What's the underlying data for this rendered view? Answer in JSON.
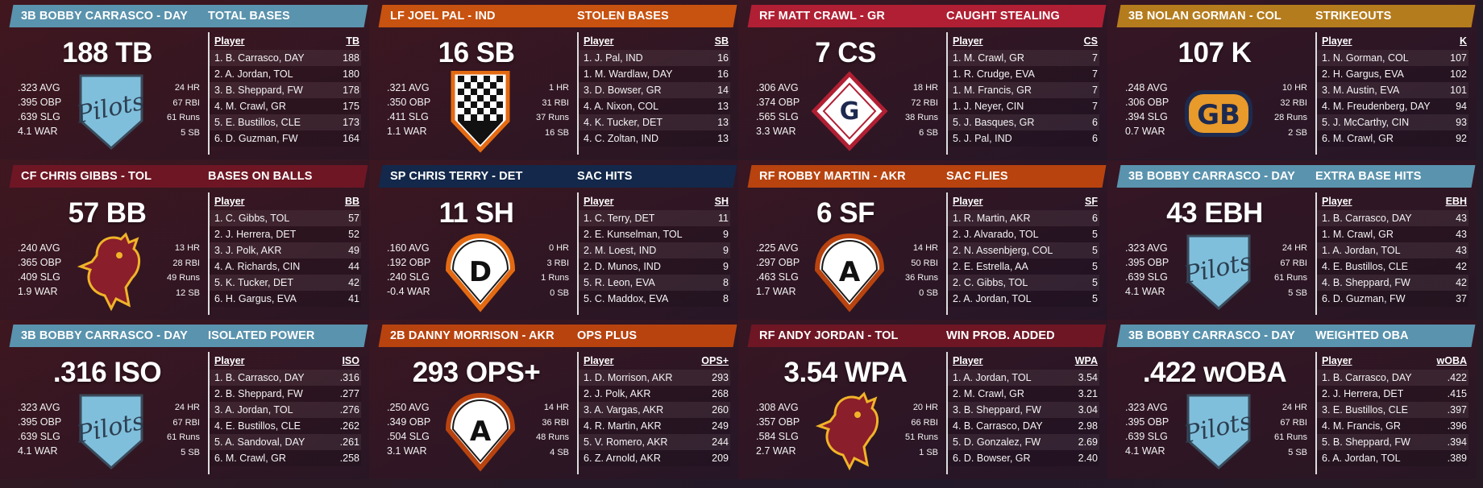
{
  "panels": [
    {
      "player": "3B BOBBY CARRASCO - DAY",
      "category": "TOTAL BASES",
      "big": "188 TB",
      "rates": [
        ".323 AVG",
        ".395 OBP",
        ".639 SLG",
        "4.1 WAR"
      ],
      "counts": [
        "24 HR",
        "67 RBI",
        "61 Runs",
        "5 SB"
      ],
      "logo": "pilots-logo",
      "col": "TB",
      "rows": [
        [
          "1. B. Carrasco, DAY",
          "188"
        ],
        [
          "2. A. Jordan, TOL",
          "180"
        ],
        [
          "3. B. Sheppard, FW",
          "178"
        ],
        [
          "4. M. Crawl, GR",
          "175"
        ],
        [
          "5. E. Bustillos, CLE",
          "173"
        ],
        [
          "6. D. Guzman, FW",
          "164"
        ]
      ],
      "color": "#5a93ad"
    },
    {
      "player": "LF JOEL PAL - IND",
      "category": "STOLEN BASES",
      "big": "16 SB",
      "rates": [
        ".321 AVG",
        ".350 OBP",
        ".411 SLG",
        "1.1 WAR"
      ],
      "counts": [
        "1 HR",
        "31 RBI",
        "37 Runs",
        "16 SB"
      ],
      "logo": "checkered-flag-logo",
      "col": "SB",
      "rows": [
        [
          "1. J. Pal, IND",
          "16"
        ],
        [
          "1. M. Wardlaw, DAY",
          "16"
        ],
        [
          "3. D. Bowser, GR",
          "14"
        ],
        [
          "4. A. Nixon, COL",
          "13"
        ],
        [
          "4. K. Tucker, DET",
          "13"
        ],
        [
          "4. C. Zoltan, IND",
          "13"
        ]
      ],
      "color": "#c8520f"
    },
    {
      "player": "RF MATT CRAWL - GR",
      "category": "CAUGHT STEALING",
      "big": "7 CS",
      "rates": [
        ".306 AVG",
        ".374 OBP",
        ".565 SLG",
        "3.3 WAR"
      ],
      "counts": [
        "18 HR",
        "72 RBI",
        "38 Runs",
        "6 SB"
      ],
      "logo": "g-diamond-logo",
      "col": "CS",
      "rows": [
        [
          "1. M. Crawl, GR",
          "7"
        ],
        [
          "1. R. Crudge, EVA",
          "7"
        ],
        [
          "1. M. Francis, GR",
          "7"
        ],
        [
          "1. J. Neyer, CIN",
          "7"
        ],
        [
          "5. J. Basques, GR",
          "6"
        ],
        [
          "5. J. Pal, IND",
          "6"
        ]
      ],
      "color": "#b01f33"
    },
    {
      "player": "3B NOLAN GORMAN - COL",
      "category": "STRIKEOUTS",
      "big": "107 K",
      "rates": [
        ".248 AVG",
        ".306 OBP",
        ".394 SLG",
        "0.7 WAR"
      ],
      "counts": [
        "10 HR",
        "32 RBI",
        "28 Runs",
        "2 SB"
      ],
      "logo": "gb-logo",
      "col": "K",
      "rows": [
        [
          "1. N. Gorman, COL",
          "107"
        ],
        [
          "2. H. Gargus, EVA",
          "102"
        ],
        [
          "3. M. Austin, EVA",
          "101"
        ],
        [
          "4. M. Freudenberg, DAY",
          "94"
        ],
        [
          "5. J. McCarthy, CIN",
          "93"
        ],
        [
          "6. M. Crawl, GR",
          "92"
        ]
      ],
      "color": "#b57c1d"
    },
    {
      "player": "CF CHRIS GIBBS - TOL",
      "category": "BASES ON BALLS",
      "big": "57 BB",
      "rates": [
        ".240 AVG",
        ".365 OBP",
        ".409 SLG",
        "1.9 WAR"
      ],
      "counts": [
        "13 HR",
        "28 RBI",
        "49 Runs",
        "12 SB"
      ],
      "logo": "rooster-logo",
      "col": "BB",
      "rows": [
        [
          "1. C. Gibbs, TOL",
          "57"
        ],
        [
          "2. J. Herrera, DET",
          "52"
        ],
        [
          "3. J. Polk, AKR",
          "49"
        ],
        [
          "4. A. Richards, CIN",
          "44"
        ],
        [
          "5. K. Tucker, DET",
          "42"
        ],
        [
          "6. H. Gargus, EVA",
          "41"
        ]
      ],
      "color": "#6e1624"
    },
    {
      "player": "SP CHRIS TERRY - DET",
      "category": "SAC HITS",
      "big": "11 SH",
      "rates": [
        ".160 AVG",
        ".192 OBP",
        ".240 SLG",
        "-0.4 WAR"
      ],
      "counts": [
        "0 HR",
        "3 RBI",
        "1 Runs",
        "0 SB"
      ],
      "logo": "d-plate-logo",
      "col": "SH",
      "rows": [
        [
          "1. C. Terry, DET",
          "11"
        ],
        [
          "2. E. Kunselman, TOL",
          "9"
        ],
        [
          "2. M. Loest, IND",
          "9"
        ],
        [
          "2. D. Munos, IND",
          "9"
        ],
        [
          "5. R. Leon, EVA",
          "8"
        ],
        [
          "5. C. Maddox, EVA",
          "8"
        ]
      ],
      "color": "#13284a"
    },
    {
      "player": "RF ROBBY MARTIN - AKR",
      "category": "SAC FLIES",
      "big": "6 SF",
      "rates": [
        ".225 AVG",
        ".297 OBP",
        ".463 SLG",
        "1.7 WAR"
      ],
      "counts": [
        "14 HR",
        "50 RBI",
        "36 Runs",
        "0 SB"
      ],
      "logo": "a-plate-logo",
      "col": "SF",
      "rows": [
        [
          "1. R. Martin, AKR",
          "6"
        ],
        [
          "2. J. Alvarado, TOL",
          "5"
        ],
        [
          "2. N. Assenbjerg, COL",
          "5"
        ],
        [
          "2. E. Estrella, AA",
          "5"
        ],
        [
          "2. C. Gibbs, TOL",
          "5"
        ],
        [
          "2. A. Jordan, TOL",
          "5"
        ]
      ],
      "color": "#b8430f"
    },
    {
      "player": "3B BOBBY CARRASCO - DAY",
      "category": "EXTRA BASE HITS",
      "big": "43 EBH",
      "rates": [
        ".323 AVG",
        ".395 OBP",
        ".639 SLG",
        "4.1 WAR"
      ],
      "counts": [
        "24 HR",
        "67 RBI",
        "61 Runs",
        "5 SB"
      ],
      "logo": "pilots-logo",
      "col": "EBH",
      "rows": [
        [
          "1. B. Carrasco, DAY",
          "43"
        ],
        [
          "1. M. Crawl, GR",
          "43"
        ],
        [
          "1. A. Jordan, TOL",
          "43"
        ],
        [
          "4. E. Bustillos, CLE",
          "42"
        ],
        [
          "4. B. Sheppard, FW",
          "42"
        ],
        [
          "6. D. Guzman, FW",
          "37"
        ]
      ],
      "color": "#5a93ad"
    },
    {
      "player": "3B BOBBY CARRASCO - DAY",
      "category": "ISOLATED POWER",
      "big": ".316 ISO",
      "rates": [
        ".323 AVG",
        ".395 OBP",
        ".639 SLG",
        "4.1 WAR"
      ],
      "counts": [
        "24 HR",
        "67 RBI",
        "61 Runs",
        "5 SB"
      ],
      "logo": "pilots-logo",
      "col": "ISO",
      "rows": [
        [
          "1. B. Carrasco, DAY",
          ".316"
        ],
        [
          "2. B. Sheppard, FW",
          ".277"
        ],
        [
          "3. A. Jordan, TOL",
          ".276"
        ],
        [
          "4. E. Bustillos, CLE",
          ".262"
        ],
        [
          "5. A. Sandoval, DAY",
          ".261"
        ],
        [
          "6. M. Crawl, GR",
          ".258"
        ]
      ],
      "color": "#5a93ad"
    },
    {
      "player": "2B DANNY MORRISON - AKR",
      "category": "OPS PLUS",
      "big": "293 OPS+",
      "rates": [
        ".250 AVG",
        ".349 OBP",
        ".504 SLG",
        "3.1 WAR"
      ],
      "counts": [
        "14 HR",
        "36 RBI",
        "48 Runs",
        "4 SB"
      ],
      "logo": "a-plate-logo",
      "col": "OPS+",
      "rows": [
        [
          "1. D. Morrison, AKR",
          "293"
        ],
        [
          "2. J. Polk, AKR",
          "268"
        ],
        [
          "3. A. Vargas, AKR",
          "260"
        ],
        [
          "4. R. Martin, AKR",
          "249"
        ],
        [
          "5. V. Romero, AKR",
          "244"
        ],
        [
          "6. Z. Arnold, AKR",
          "209"
        ]
      ],
      "color": "#b8430f"
    },
    {
      "player": "RF ANDY JORDAN - TOL",
      "category": "WIN PROB. ADDED",
      "big": "3.54 WPA",
      "rates": [
        ".308 AVG",
        ".357 OBP",
        ".584 SLG",
        "2.7 WAR"
      ],
      "counts": [
        "20 HR",
        "66 RBI",
        "51 Runs",
        "1 SB"
      ],
      "logo": "rooster-logo",
      "col": "WPA",
      "rows": [
        [
          "1. A. Jordan, TOL",
          "3.54"
        ],
        [
          "2. M. Crawl, GR",
          "3.21"
        ],
        [
          "3. B. Sheppard, FW",
          "3.04"
        ],
        [
          "4. B. Carrasco, DAY",
          "2.98"
        ],
        [
          "5. D. Gonzalez, FW",
          "2.69"
        ],
        [
          "6. D. Bowser, GR",
          "2.40"
        ]
      ],
      "color": "#6e1624"
    },
    {
      "player": "3B BOBBY CARRASCO - DAY",
      "category": "WEIGHTED OBA",
      "big": ".422 wOBA",
      "rates": [
        ".323 AVG",
        ".395 OBP",
        ".639 SLG",
        "4.1 WAR"
      ],
      "counts": [
        "24 HR",
        "67 RBI",
        "61 Runs",
        "5 SB"
      ],
      "logo": "pilots-logo",
      "col": "wOBA",
      "rows": [
        [
          "1. B. Carrasco, DAY",
          ".422"
        ],
        [
          "2. J. Herrera, DET",
          ".415"
        ],
        [
          "3. E. Bustillos, CLE",
          ".397"
        ],
        [
          "4. M. Francis, GR",
          ".396"
        ],
        [
          "5. B. Sheppard, FW",
          ".394"
        ],
        [
          "6. A. Jordan, TOL",
          ".389"
        ]
      ],
      "color": "#5a93ad"
    }
  ],
  "table_header_label": "Player"
}
